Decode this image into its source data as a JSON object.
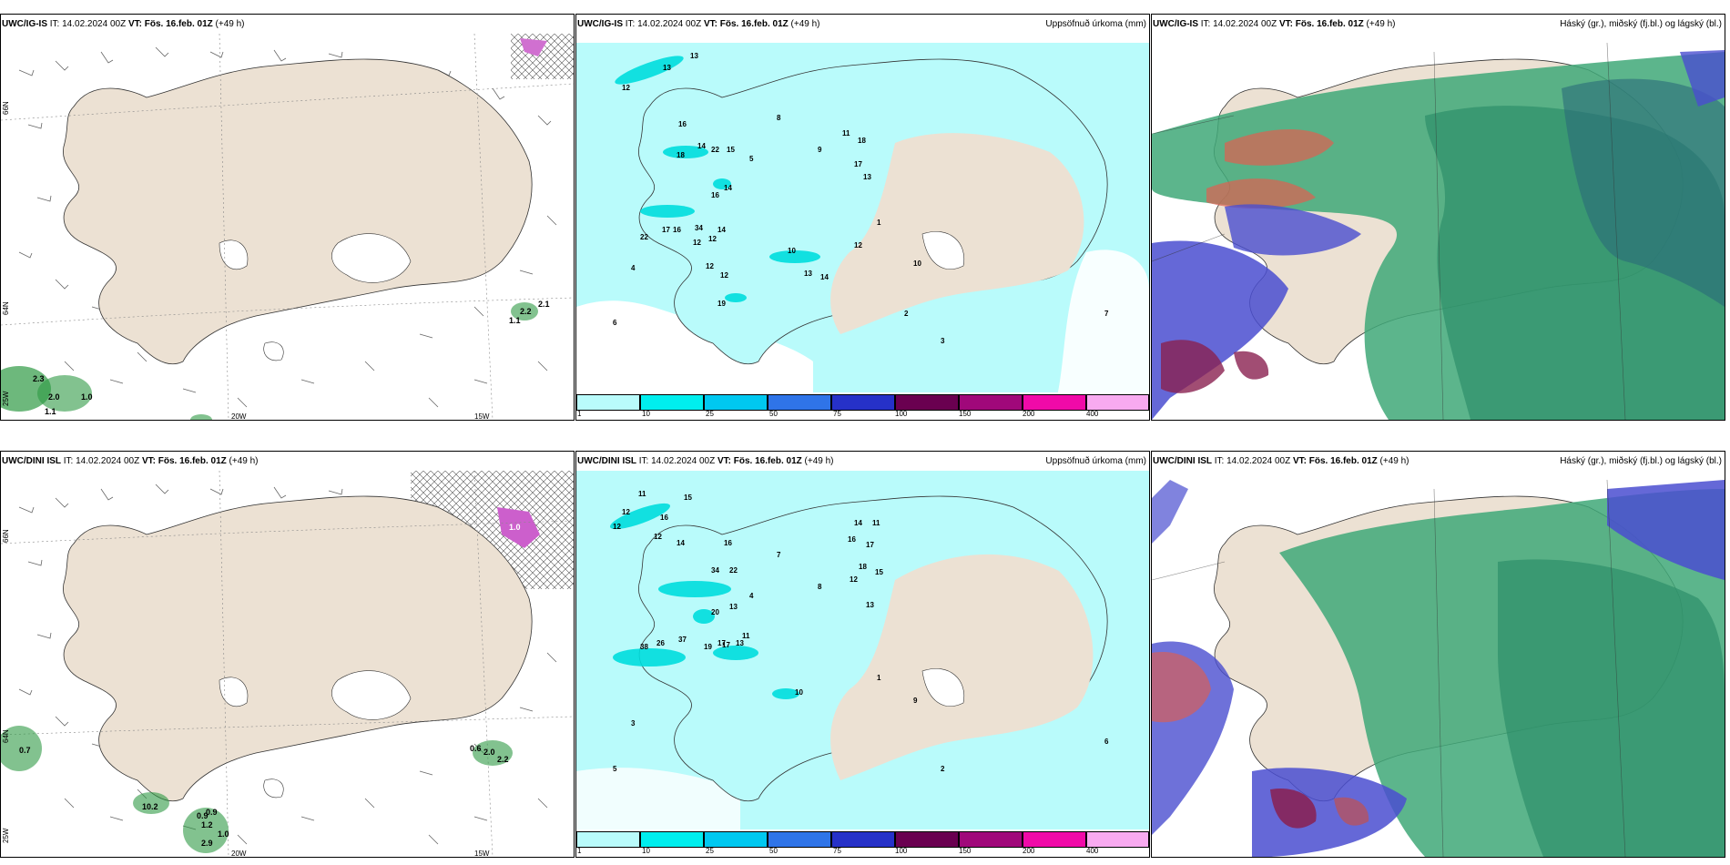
{
  "panels": [
    {
      "id": "p1",
      "header_model": "UWC/IG-IS",
      "header_it": " IT: 14.02.2024 00Z ",
      "header_vt_label": "VT:",
      "header_vt": " Fös. 16.feb. 01Z",
      "header_lead": " (+49 h)",
      "header_right": ""
    },
    {
      "id": "p2",
      "header_model": "UWC/IG-IS",
      "header_it": " IT: 14.02.2024 00Z ",
      "header_vt_label": "VT:",
      "header_vt": " Fös. 16.feb. 01Z",
      "header_lead": " (+49 h)",
      "header_right": "Uppsöfnuð úrkoma (mm)"
    },
    {
      "id": "p3",
      "header_model": "UWC/IG-IS",
      "header_it": " IT: 14.02.2024 00Z ",
      "header_vt_label": "VT:",
      "header_vt": " Fös. 16.feb. 01Z",
      "header_lead": " (+49 h)",
      "header_right": "Háský (gr.), miðský (fj.bl.) og lágský (bl.)"
    },
    {
      "id": "p4",
      "header_model": "UWC/DINI ISL",
      "header_it": " IT: 14.02.2024 00Z ",
      "header_vt_label": "VT:",
      "header_vt": " Fös. 16.feb. 01Z",
      "header_lead": " (+49 h)",
      "header_right": ""
    },
    {
      "id": "p5",
      "header_model": "UWC/DINI ISL",
      "header_it": " IT: 14.02.2024 00Z ",
      "header_vt_label": "VT:",
      "header_vt": " Fös. 16.feb. 01Z",
      "header_lead": " (+49 h)",
      "header_right": "Uppsöfnuð úrkoma (mm)"
    },
    {
      "id": "p6",
      "header_model": "UWC/DINI ISL",
      "header_it": " IT: 14.02.2024 00Z ",
      "header_vt_label": "VT:",
      "header_vt": " Fös. 16.feb. 01Z",
      "header_lead": " (+49 h)",
      "header_right": "Háský (gr.), miðský (fj.bl.) og lágský (bl.)"
    }
  ],
  "axis_labels": {
    "lon_20": "20W",
    "lon_15": "15W",
    "lon_25": "25W",
    "lat_66": "66N",
    "lat_64": "64N"
  },
  "colorbar": {
    "ticks": [
      "1",
      "10",
      "25",
      "50",
      "75",
      "100",
      "150",
      "200",
      "400"
    ],
    "colors": [
      "#b9fbfb",
      "#00eeee",
      "#00c8f0",
      "#2f74e8",
      "#2631c8",
      "#6a0050",
      "#a0087a",
      "#f00aa8",
      "#f8aaf0"
    ]
  },
  "colors": {
    "land": "#ece1d3",
    "precip_light": "#b9fbfb",
    "sea": "#ffffff",
    "high_cloud": "#3fa878",
    "mid_cloud": "#2e8f6a",
    "low_cloud": "#4a4ed0"
  },
  "p1_values": [
    "2.2",
    "2.1",
    "1.1",
    "2.3",
    "2.0",
    "1.0",
    "1.1"
  ],
  "p4_values": [
    "1.0",
    "0.7",
    "0.6",
    "2.0",
    "2.2",
    "10.2",
    "0.9",
    "0.9",
    "1.2",
    "2.9",
    "1.0"
  ],
  "p2_values": [
    "13",
    "13",
    "12",
    "16",
    "14",
    "22",
    "15",
    "18",
    "16",
    "14",
    "34",
    "14",
    "12",
    "17",
    "16",
    "22",
    "12",
    "12",
    "19",
    "12",
    "12",
    "14",
    "13",
    "10",
    "17",
    "18",
    "13",
    "11",
    "1",
    "2",
    "3",
    "4",
    "5",
    "6",
    "7",
    "8",
    "9",
    "10"
  ],
  "p5_values": [
    "11",
    "12",
    "12",
    "16",
    "15",
    "12",
    "14",
    "16",
    "34",
    "22",
    "20",
    "13",
    "17",
    "38",
    "26",
    "37",
    "19",
    "17",
    "13",
    "11",
    "14",
    "11",
    "17",
    "16",
    "18",
    "15",
    "12",
    "13",
    "10",
    "1",
    "2",
    "3",
    "4",
    "5",
    "6",
    "7",
    "8",
    "9"
  ]
}
